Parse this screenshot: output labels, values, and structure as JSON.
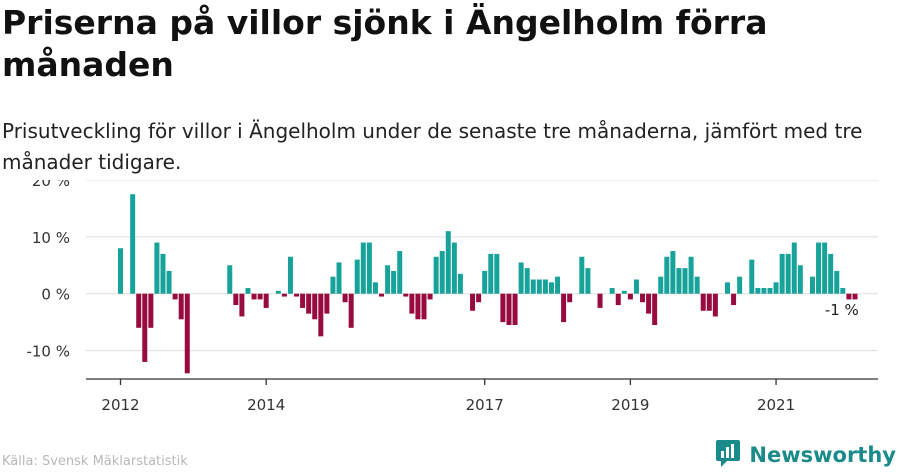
{
  "title": "Priserna på villor sjönk i Ängelholm förra månaden",
  "subtitle": "Prisutveckling för villor i Ängelholm under de senaste tre månaderna, jämfört med tre månader tidigare.",
  "footer": {
    "source": "Källa: Svensk Mäklarstatistik",
    "brand": "Newsworthy",
    "brand_icon": "chart-logo-icon"
  },
  "colors": {
    "positive": "#18a39a",
    "negative": "#980b3e",
    "grid": "#dddddd",
    "axis": "#333333",
    "brand": "#1b8a8a"
  },
  "chart_data": {
    "type": "bar",
    "title": "Priserna på villor sjönk i Ängelholm förra månaden",
    "xlabel": "",
    "ylabel": "",
    "ylim": [
      -15,
      20
    ],
    "y_ticks": [
      -10,
      0,
      10,
      20
    ],
    "y_tick_labels": [
      "-10 %",
      "0 %",
      "10 %",
      "20 %"
    ],
    "x_ticks": [
      {
        "label": "2012",
        "index": 0
      },
      {
        "label": "2014",
        "index": 24
      },
      {
        "label": "2017",
        "index": 60
      },
      {
        "label": "2019",
        "index": 84
      },
      {
        "label": "2021",
        "index": 108
      }
    ],
    "annotation": {
      "text": "-1 %",
      "index": 119
    },
    "series": [
      {
        "name": "Prisutveckling",
        "values": [
          8,
          0,
          17.5,
          -6,
          -12,
          -6,
          9,
          7,
          4,
          -1,
          -4.5,
          -14,
          0,
          0,
          0,
          0,
          0,
          0,
          5,
          -2,
          -4,
          1,
          -1,
          -1,
          -2.5,
          0,
          0.5,
          -0.5,
          6.5,
          -0.5,
          -2.5,
          -3.5,
          -4.5,
          -7.5,
          -3.5,
          3,
          5.5,
          -1.5,
          -6,
          6,
          9,
          9,
          2,
          -0.5,
          5,
          4,
          7.5,
          -0.5,
          -3.5,
          -4.5,
          -4.5,
          -1,
          6.5,
          7.5,
          11,
          9,
          3.5,
          0,
          -3,
          -1.5,
          4,
          7,
          7,
          -5,
          -5.5,
          -5.5,
          5.5,
          4.5,
          2.5,
          2.5,
          2.5,
          2,
          3,
          -5,
          -1.5,
          0,
          6.5,
          4.5,
          0,
          -2.5,
          0,
          1,
          -2,
          0.5,
          -1,
          2.5,
          -1.5,
          -3.5,
          -5.5,
          3,
          6.5,
          7.5,
          4.5,
          4.5,
          6.5,
          3,
          -3,
          -3,
          -4,
          0,
          2,
          -2,
          3,
          0,
          6,
          1,
          1,
          1,
          2,
          7,
          7,
          9,
          5,
          0,
          3,
          9,
          9,
          7,
          4,
          1,
          -1,
          -1
        ]
      }
    ]
  }
}
